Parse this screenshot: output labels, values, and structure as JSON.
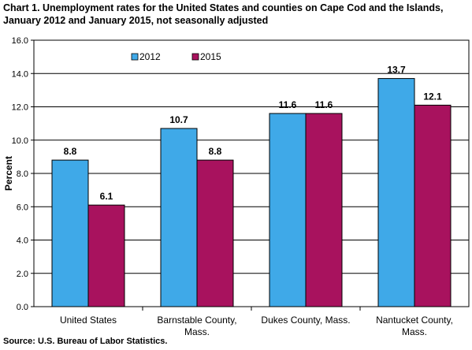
{
  "title_lines": [
    "Chart 1. Unemployment rates for the United States and counties on Cape Cod and the Islands,",
    "January 2012 and January 2015, not seasonally adjusted"
  ],
  "source": "Source: U.S. Bureau of Labor Statistics.",
  "chart_data": {
    "type": "bar",
    "title": "Chart 1. Unemployment rates for the United States and counties on Cape Cod and the Islands, January 2012 and January 2015, not seasonally adjusted",
    "xlabel": "",
    "ylabel": "Percent",
    "ylim": [
      0,
      16
    ],
    "yticks": [
      "0.0",
      "2.0",
      "4.0",
      "6.0",
      "8.0",
      "10.0",
      "12.0",
      "14.0",
      "16.0"
    ],
    "categories": [
      [
        "United States"
      ],
      [
        "Barnstable County,",
        "Mass."
      ],
      [
        "Dukes County, Mass."
      ],
      [
        "Nantucket County,",
        "Mass."
      ]
    ],
    "series": [
      {
        "name": "2012",
        "color": "#3fa9e8",
        "values": [
          8.8,
          10.7,
          11.6,
          13.7
        ],
        "labels": [
          "8.8",
          "10.7",
          "11.6",
          "13.7"
        ]
      },
      {
        "name": "2015",
        "color": "#a8125e",
        "values": [
          6.1,
          8.8,
          11.6,
          12.1
        ],
        "labels": [
          "6.1",
          "8.8",
          "11.6",
          "12.1"
        ]
      }
    ],
    "grid": true,
    "legend": "top-left inside plot"
  }
}
